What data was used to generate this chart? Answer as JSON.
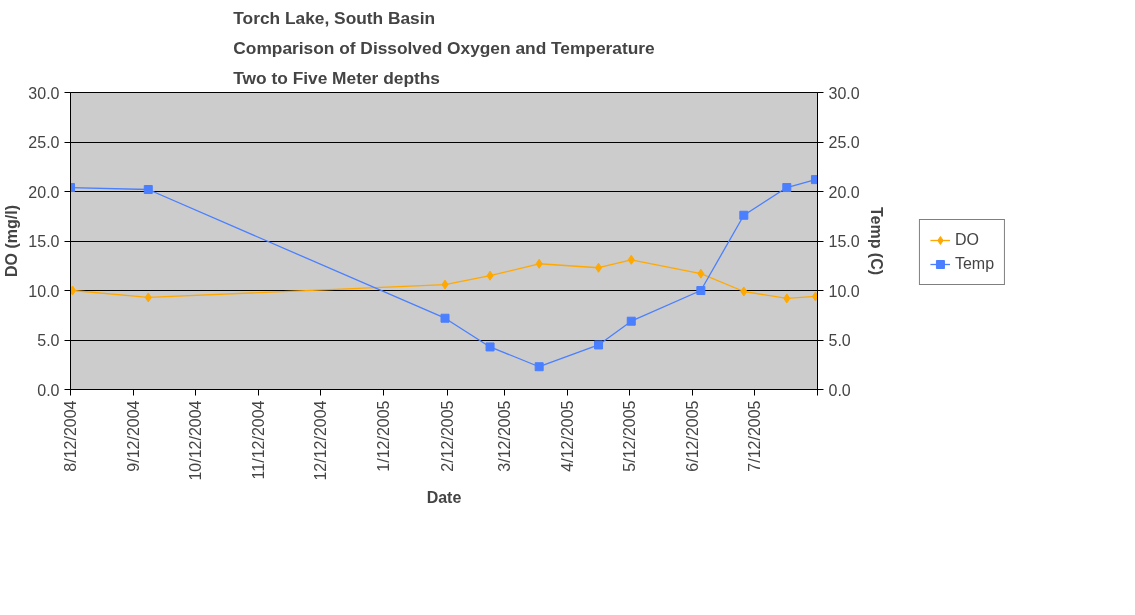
{
  "chart_data": {
    "type": "line",
    "title": "Torch Lake, South Basin\nComparison of Dissolved Oxygen and Temperature\nTwo to Five Meter depths",
    "xlabel": "Date",
    "ylabel": "DO (mg/l)",
    "y2label": "Temp (C)",
    "series": [
      {
        "name": "DO",
        "color": "#ffa800",
        "marker": "diamond",
        "x": [
          "2004-08-13",
          "2004-09-19",
          "2005-02-11",
          "2005-03-05",
          "2005-03-29",
          "2005-04-27",
          "2005-05-13",
          "2005-06-16",
          "2005-07-07",
          "2005-07-28",
          "2005-08-11"
        ],
        "values": [
          10.0,
          9.3,
          10.6,
          11.5,
          12.7,
          12.3,
          13.1,
          11.7,
          9.9,
          9.2,
          9.4
        ]
      },
      {
        "name": "Temp",
        "color": "#4a7fff",
        "marker": "square",
        "axis": "y2",
        "x": [
          "2004-08-12",
          "2004-09-19",
          "2005-02-11",
          "2005-03-05",
          "2005-03-29",
          "2005-04-27",
          "2005-05-13",
          "2005-06-16",
          "2005-07-07",
          "2005-07-28",
          "2005-08-11"
        ],
        "values": [
          20.4,
          20.2,
          7.2,
          4.3,
          2.3,
          4.5,
          6.9,
          10.0,
          17.6,
          20.4,
          21.2
        ]
      }
    ],
    "xlim": [
      "2004-08-12",
      "2005-08-12"
    ],
    "xticks": [
      {
        "value": "2004-08-12",
        "label": "8/12/2004"
      },
      {
        "value": "2004-09-12",
        "label": "9/12/2004"
      },
      {
        "value": "2004-10-12",
        "label": "10/12/2004"
      },
      {
        "value": "2004-11-12",
        "label": "11/12/2004"
      },
      {
        "value": "2004-12-12",
        "label": "12/12/2004"
      },
      {
        "value": "2005-01-12",
        "label": "1/12/2005"
      },
      {
        "value": "2005-02-12",
        "label": "2/12/2005"
      },
      {
        "value": "2005-03-12",
        "label": "3/12/2005"
      },
      {
        "value": "2005-04-12",
        "label": "4/12/2005"
      },
      {
        "value": "2005-05-12",
        "label": "5/12/2005"
      },
      {
        "value": "2005-06-12",
        "label": "6/12/2005"
      },
      {
        "value": "2005-07-12",
        "label": "7/12/2005"
      },
      {
        "value": "2005-08-12",
        "label": null
      }
    ],
    "ylim": [
      0,
      30
    ],
    "yticks": [
      {
        "value": 0,
        "label": "0.0"
      },
      {
        "value": 5,
        "label": "5.0"
      },
      {
        "value": 10,
        "label": "10.0"
      },
      {
        "value": 15,
        "label": "15.0"
      },
      {
        "value": 20,
        "label": "20.0"
      },
      {
        "value": 25,
        "label": "25.0"
      },
      {
        "value": 30,
        "label": "30.0"
      }
    ],
    "y2lim": [
      0,
      30
    ],
    "y2ticks": [
      {
        "value": 0,
        "label": "0.0"
      },
      {
        "value": 5,
        "label": "5.0"
      },
      {
        "value": 10,
        "label": "10.0"
      },
      {
        "value": 15,
        "label": "15.0"
      },
      {
        "value": 20,
        "label": "20.0"
      },
      {
        "value": 25,
        "label": "25.0"
      },
      {
        "value": 30,
        "label": "30.0"
      }
    ],
    "grid": "y",
    "legend": "right",
    "line_style": "solid"
  }
}
